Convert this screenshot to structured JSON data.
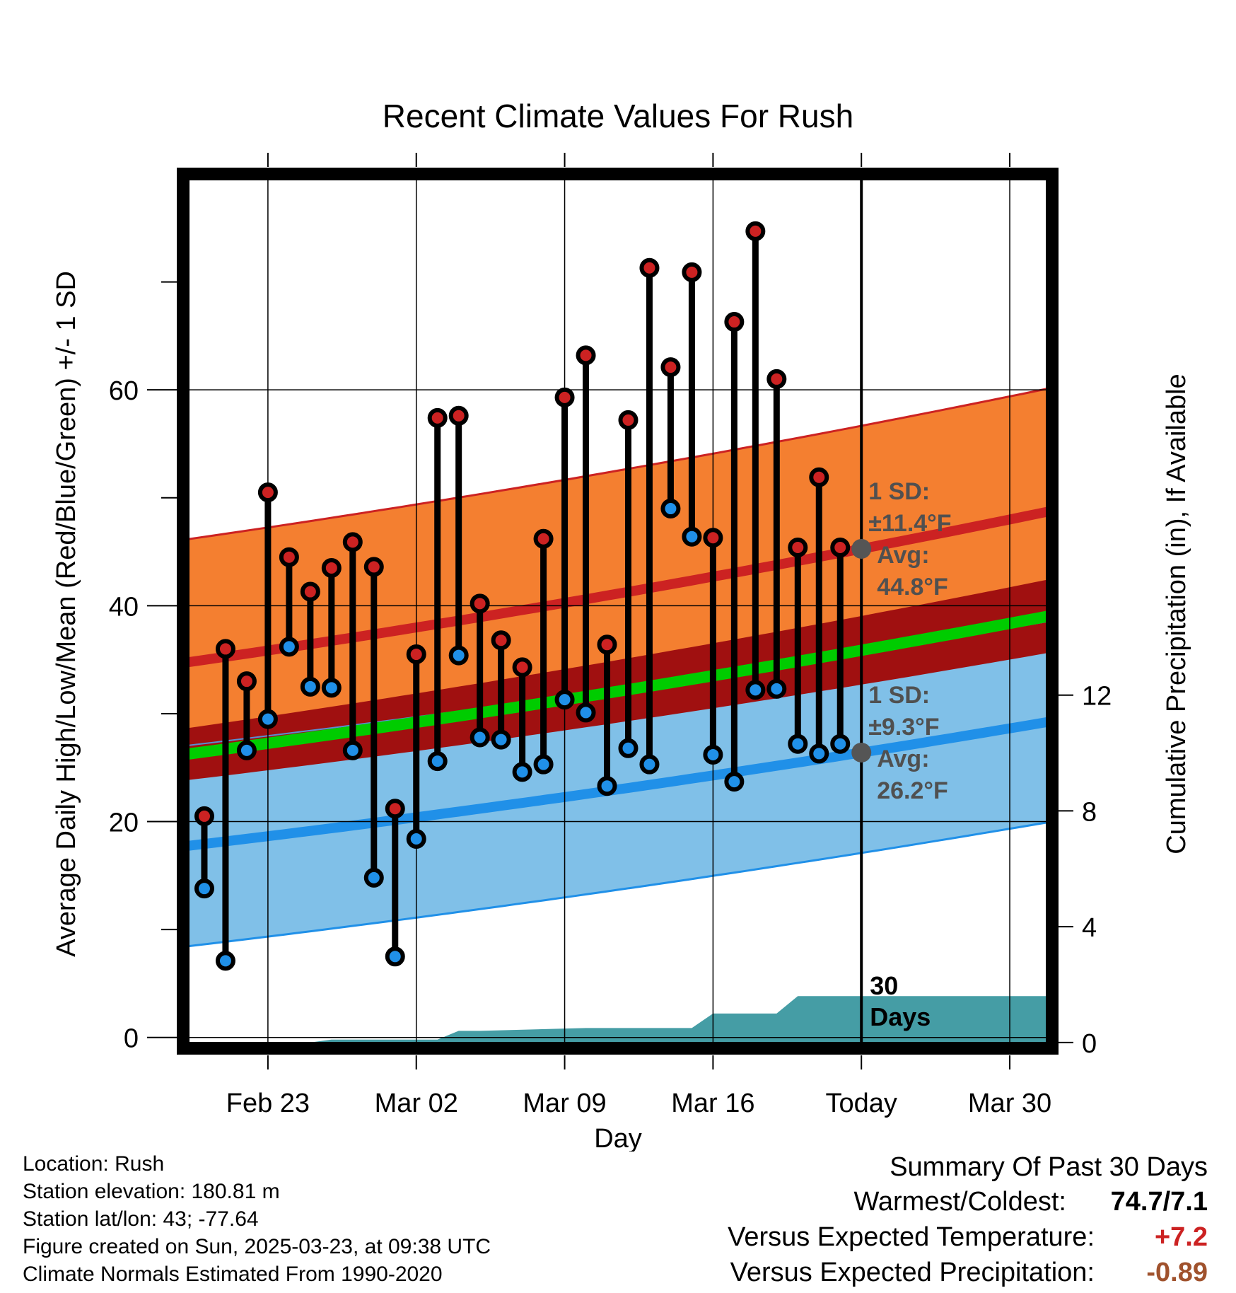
{
  "chart_data": {
    "type": "line",
    "title": "Recent Climate Values For Rush",
    "xlabel": "Day",
    "ylabel": "Average Daily High/Low/Mean (Red/Blue/Green) +/- 1 SD",
    "y2label": "Cumulative Precipitation (in), If Available",
    "ylim": [
      -1,
      80
    ],
    "y2lim": [
      -0.2,
      30
    ],
    "y_ticks": [
      "0",
      "20",
      "40",
      "60"
    ],
    "y2_ticks": [
      "0",
      "4",
      "8",
      "12"
    ],
    "x_start": "2025-02-19",
    "x_end": "2025-04-01",
    "x_ticks": [
      {
        "date": "2025-02-23",
        "label": "Feb 23"
      },
      {
        "date": "2025-03-02",
        "label": "Mar 02"
      },
      {
        "date": "2025-03-09",
        "label": "Mar 09"
      },
      {
        "date": "2025-03-16",
        "label": "Mar 16"
      },
      {
        "date": "2025-03-23",
        "label": "Today"
      },
      {
        "date": "2025-03-30",
        "label": "Mar 30"
      }
    ],
    "today": "2025-03-23",
    "daily": {
      "dates": [
        "2025-02-20",
        "2025-02-21",
        "2025-02-22",
        "2025-02-23",
        "2025-02-24",
        "2025-02-25",
        "2025-02-26",
        "2025-02-27",
        "2025-02-28",
        "2025-03-01",
        "2025-03-02",
        "2025-03-03",
        "2025-03-04",
        "2025-03-05",
        "2025-03-06",
        "2025-03-07",
        "2025-03-08",
        "2025-03-09",
        "2025-03-10",
        "2025-03-11",
        "2025-03-12",
        "2025-03-13",
        "2025-03-14",
        "2025-03-15",
        "2025-03-16",
        "2025-03-17",
        "2025-03-18",
        "2025-03-19",
        "2025-03-20",
        "2025-03-21",
        "2025-03-22"
      ],
      "high": [
        20.5,
        36.0,
        33.0,
        50.5,
        44.5,
        41.3,
        43.5,
        45.9,
        43.6,
        21.2,
        35.5,
        57.4,
        57.6,
        40.2,
        36.8,
        34.3,
        46.2,
        59.3,
        63.2,
        36.4,
        57.2,
        71.3,
        62.1,
        70.9,
        46.3,
        66.3,
        74.7,
        61.0,
        45.4,
        51.9,
        45.4
      ],
      "low": [
        13.8,
        7.1,
        26.6,
        29.5,
        36.2,
        32.5,
        32.4,
        26.6,
        14.8,
        7.5,
        18.4,
        25.6,
        35.4,
        27.8,
        27.6,
        24.6,
        25.3,
        31.3,
        30.1,
        23.3,
        26.8,
        25.3,
        49.0,
        46.4,
        26.2,
        23.7,
        32.2,
        32.3,
        27.2,
        26.3,
        27.2
      ]
    },
    "normal_high": {
      "start": 34.7,
      "end": 48.8,
      "label_sd": "1 SD:",
      "sd": "±11.4°F",
      "label_avg": "Avg:",
      "avg": "44.8°F"
    },
    "normal_low": {
      "start": 17.7,
      "end": 29.3,
      "label_sd": "1 SD:",
      "sd": "±9.3°F",
      "label_avg": "Avg:",
      "avg": "26.2°F"
    },
    "normal_mean": {
      "start": 26.2,
      "end": 39.1
    },
    "sd_high": 11.4,
    "sd_low": 9.3,
    "precip_sd": {
      "start": 2.4,
      "end": 3.4
    },
    "precip": {
      "dates": [
        "2025-02-19",
        "2025-02-25",
        "2025-02-26",
        "2025-02-27",
        "2025-03-01",
        "2025-03-03",
        "2025-03-04",
        "2025-03-05",
        "2025-03-10",
        "2025-03-15",
        "2025-03-16",
        "2025-03-19",
        "2025-03-20",
        "2025-03-22",
        "2025-04-01"
      ],
      "values": [
        0.0,
        0.0,
        0.1,
        0.1,
        0.1,
        0.1,
        0.4,
        0.4,
        0.5,
        0.5,
        1.0,
        1.0,
        1.6,
        1.6,
        1.6
      ]
    },
    "precip_label": "30\nDays",
    "colors": {
      "high": "#cc2222",
      "low": "#2090e8",
      "mean": "#00cc00",
      "high_band": "#f47f30",
      "low_band": "#80c0e8",
      "precip": "#459da5",
      "dark_band": "#a01010",
      "ann_text": "#505050"
    }
  },
  "info": {
    "location": "Location: Rush",
    "elevation": "Station elevation: 180.81 m",
    "latlon": "Station lat/lon: 43; -77.64",
    "created": "Figure created on Sun, 2025-03-23, at 09:38 UTC",
    "normals": "Climate Normals Estimated From 1990-2020"
  },
  "summary": {
    "title": "Summary Of Past 30 Days",
    "warmest_label": "Warmest/Coldest:",
    "warmest_value": "74.7/7.1",
    "temp_label": "Versus Expected Temperature:",
    "temp_value": "+7.2",
    "temp_color": "#cc2222",
    "precip_label": "Versus Expected Precipitation:",
    "precip_value": "-0.89",
    "precip_color": "#a0522d"
  }
}
